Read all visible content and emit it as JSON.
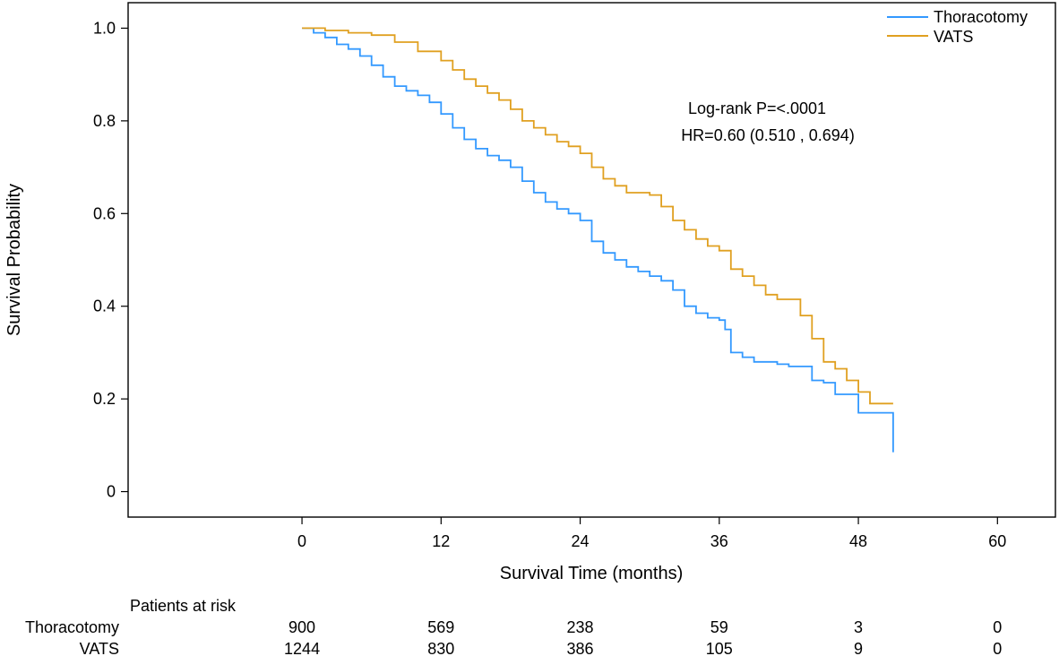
{
  "chart_data": {
    "type": "line",
    "xlabel": "Survival Time (months)",
    "ylabel": "Survival Probability",
    "xlim": [
      -15,
      65
    ],
    "ylim": [
      -0.055,
      1.055
    ],
    "x_ticks": [
      0,
      12,
      24,
      36,
      48,
      60
    ],
    "x_tick_labels": [
      "0",
      "12",
      "24",
      "36",
      "48",
      "60"
    ],
    "y_ticks": [
      0,
      0.2,
      0.4,
      0.6,
      0.8,
      1.0
    ],
    "y_tick_labels": [
      "0",
      "0.2",
      "0.4",
      "0.6",
      "0.8",
      "1.0"
    ],
    "grid": false,
    "legend_position": "top-right",
    "annotations": [
      "Log-rank P=<.0001",
      "HR=0.60 (0.510 , 0.694)"
    ],
    "series": [
      {
        "name": "Thoracotomy",
        "color": "#3399FF",
        "step": true,
        "x": [
          0,
          1,
          2,
          3,
          4,
          5,
          6,
          7,
          8,
          9,
          10,
          11,
          12,
          13,
          14,
          15,
          16,
          17,
          18,
          19,
          20,
          21,
          22,
          23,
          24,
          25,
          26,
          27,
          28,
          29,
          30,
          31,
          32,
          33,
          34,
          35,
          36,
          36.5,
          37,
          38,
          39,
          40,
          41,
          42,
          43,
          44,
          45,
          46,
          47,
          48,
          49,
          50,
          51,
          51
        ],
        "y": [
          1.0,
          0.99,
          0.98,
          0.965,
          0.955,
          0.94,
          0.92,
          0.895,
          0.875,
          0.865,
          0.855,
          0.84,
          0.815,
          0.785,
          0.76,
          0.74,
          0.725,
          0.715,
          0.7,
          0.67,
          0.645,
          0.625,
          0.61,
          0.6,
          0.585,
          0.54,
          0.515,
          0.5,
          0.485,
          0.475,
          0.465,
          0.455,
          0.435,
          0.4,
          0.385,
          0.375,
          0.37,
          0.35,
          0.3,
          0.29,
          0.28,
          0.28,
          0.275,
          0.27,
          0.27,
          0.24,
          0.235,
          0.21,
          0.21,
          0.17,
          0.17,
          0.17,
          0.165,
          0.085
        ]
      },
      {
        "name": "VATS",
        "color": "#E0A020",
        "step": true,
        "x": [
          0,
          2,
          4,
          6,
          8,
          10,
          12,
          13,
          14,
          15,
          16,
          17,
          18,
          19,
          20,
          21,
          22,
          23,
          24,
          25,
          26,
          27,
          28,
          29,
          30,
          31,
          32,
          33,
          34,
          35,
          36,
          37,
          38,
          39,
          40,
          41,
          42,
          43,
          44,
          45,
          46,
          47,
          48,
          49,
          50,
          51
        ],
        "y": [
          1.0,
          0.995,
          0.99,
          0.985,
          0.97,
          0.95,
          0.93,
          0.91,
          0.89,
          0.875,
          0.86,
          0.845,
          0.825,
          0.8,
          0.785,
          0.77,
          0.755,
          0.745,
          0.73,
          0.7,
          0.675,
          0.66,
          0.645,
          0.645,
          0.64,
          0.615,
          0.585,
          0.565,
          0.545,
          0.53,
          0.52,
          0.48,
          0.465,
          0.445,
          0.425,
          0.415,
          0.415,
          0.38,
          0.33,
          0.28,
          0.265,
          0.24,
          0.215,
          0.19,
          0.19,
          0.19
        ]
      }
    ],
    "risk_table": {
      "title": "Patients at risk",
      "times": [
        0,
        12,
        24,
        36,
        48,
        60
      ],
      "rows": [
        {
          "label": "Thoracotomy",
          "counts": [
            "900",
            "569",
            "238",
            "59",
            "3",
            "0"
          ]
        },
        {
          "label": "VATS",
          "counts": [
            "1244",
            "830",
            "386",
            "105",
            "9",
            "0"
          ]
        }
      ]
    }
  }
}
